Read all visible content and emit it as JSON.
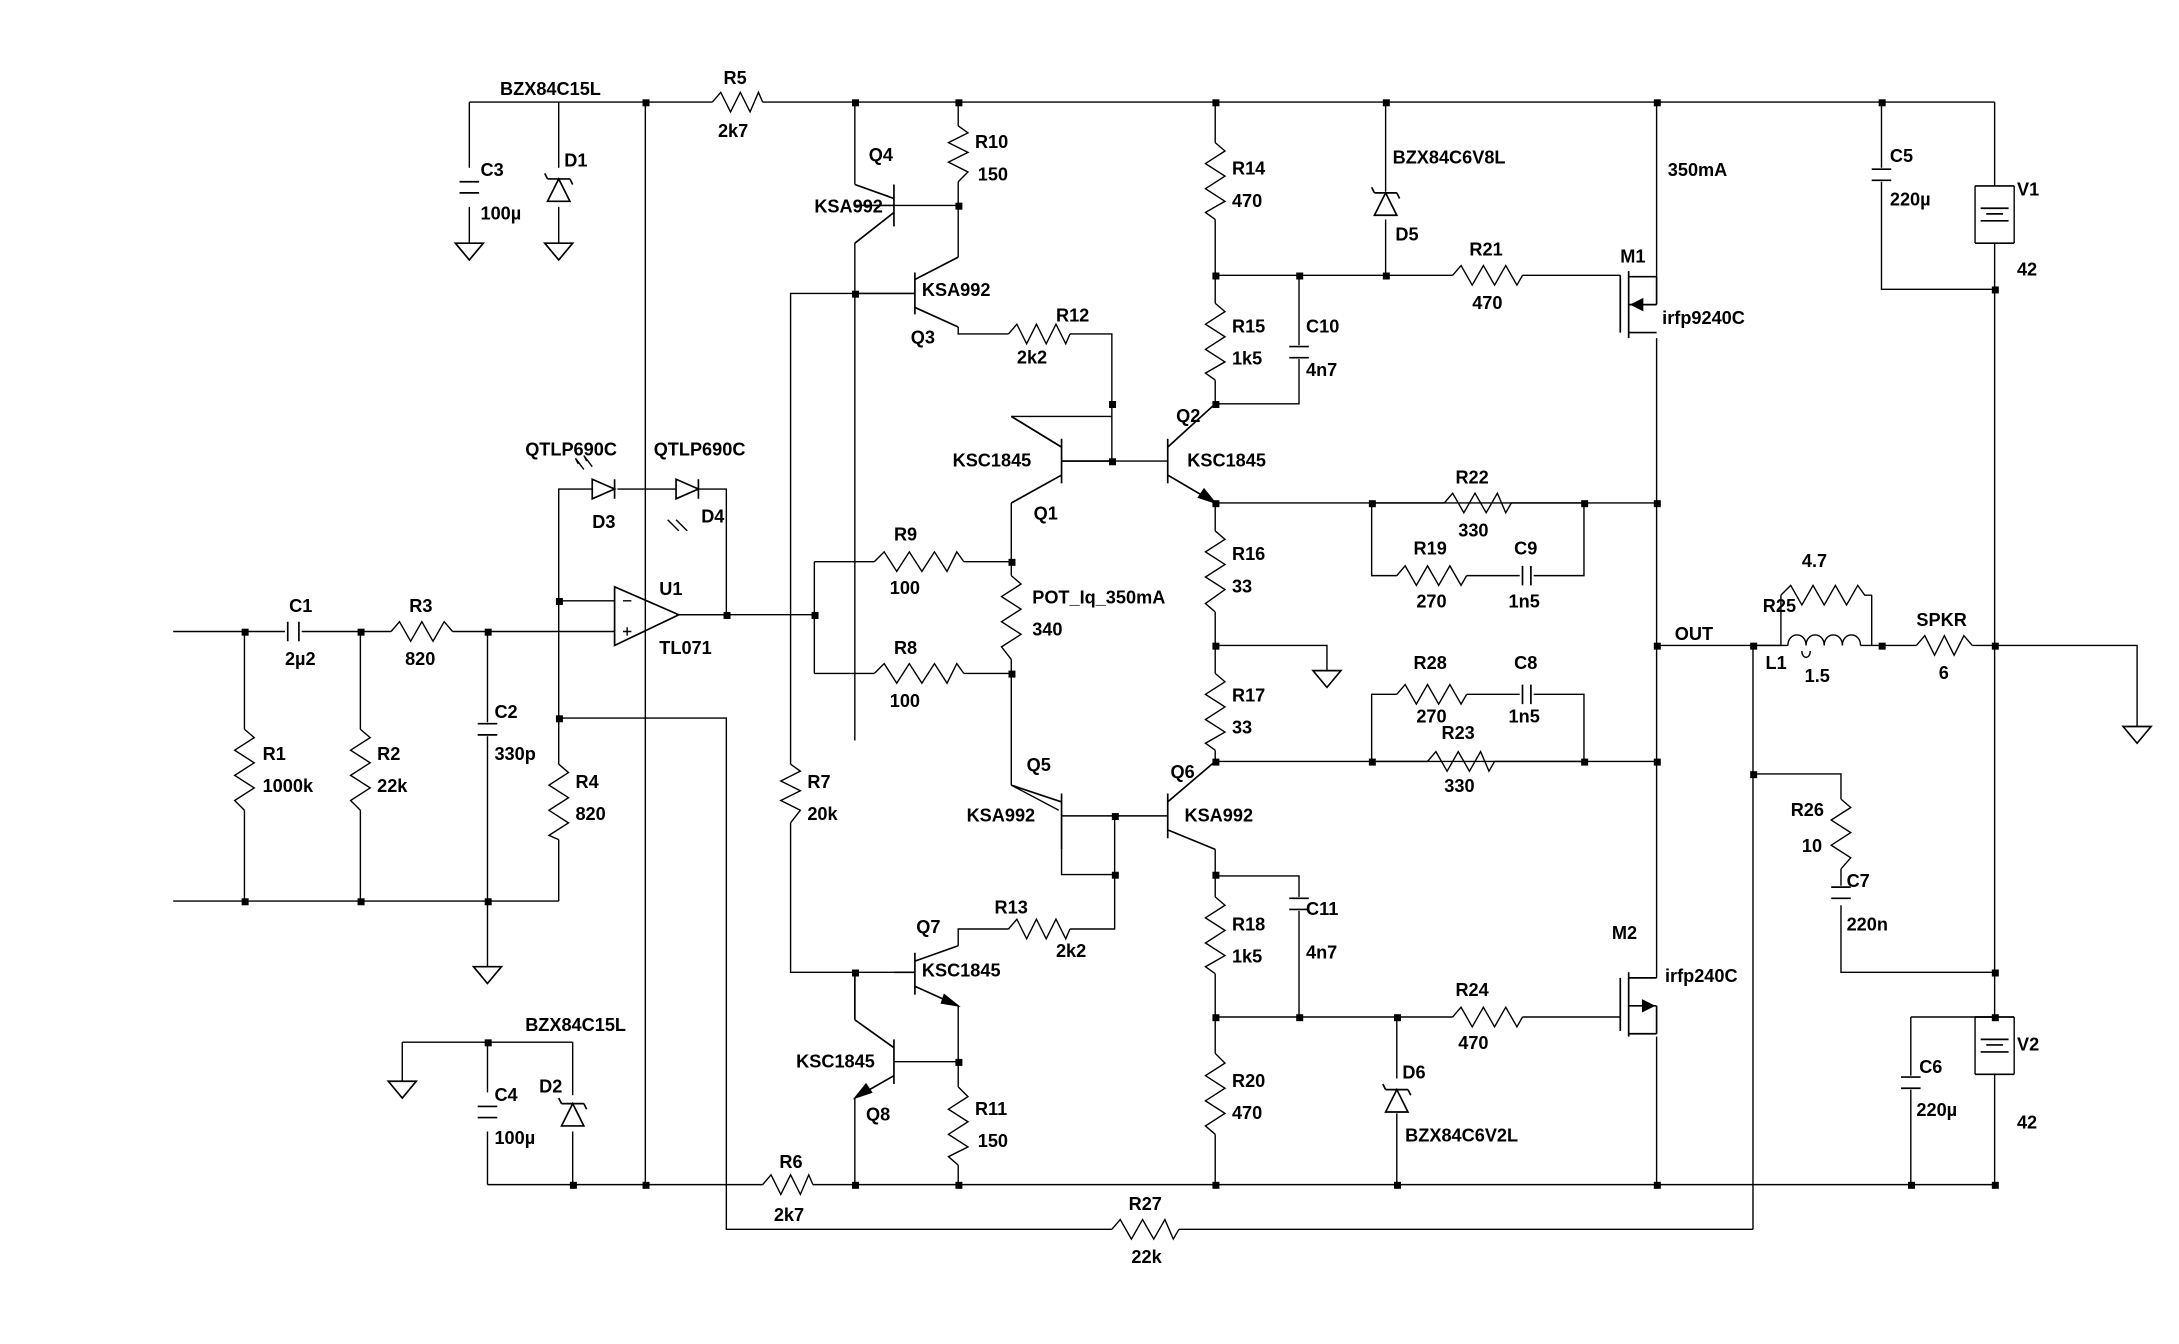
{
  "components": {
    "r1": {
      "ref": "R1",
      "value": "1000k"
    },
    "r2": {
      "ref": "R2",
      "value": "22k"
    },
    "r3": {
      "ref": "R3",
      "value": "820"
    },
    "r4": {
      "ref": "R4",
      "value": "820"
    },
    "r5": {
      "ref": "R5",
      "value": "2k7"
    },
    "r6": {
      "ref": "R6",
      "value": "2k7"
    },
    "r7": {
      "ref": "R7",
      "value": "20k"
    },
    "r8": {
      "ref": "R8",
      "value": "100"
    },
    "r9": {
      "ref": "R9",
      "value": "100"
    },
    "r10": {
      "ref": "R10",
      "value": "150"
    },
    "r11": {
      "ref": "R11",
      "value": "150"
    },
    "r12": {
      "ref": "R12",
      "value": "2k2"
    },
    "r13": {
      "ref": "R13",
      "value": "2k2"
    },
    "r14": {
      "ref": "R14",
      "value": "470"
    },
    "r15": {
      "ref": "R15",
      "value": "1k5"
    },
    "r16": {
      "ref": "R16",
      "value": "33"
    },
    "r17": {
      "ref": "R17",
      "value": "33"
    },
    "r18": {
      "ref": "R18",
      "value": "1k5"
    },
    "r19": {
      "ref": "R19",
      "value": "270"
    },
    "r20": {
      "ref": "R20",
      "value": "470"
    },
    "r21": {
      "ref": "R21",
      "value": "470"
    },
    "r22": {
      "ref": "R22",
      "value": "330"
    },
    "r23": {
      "ref": "R23",
      "value": "330"
    },
    "r24": {
      "ref": "R24",
      "value": "470"
    },
    "r25": {
      "ref": "R25",
      "value": "4.7"
    },
    "r26": {
      "ref": "R26",
      "value": "10"
    },
    "r27": {
      "ref": "R27",
      "value": "22k"
    },
    "r28": {
      "ref": "R28",
      "value": "270"
    },
    "pot": {
      "ref": "POT_Iq_350mA",
      "value": "340"
    },
    "c1": {
      "ref": "C1",
      "value": "2µ2"
    },
    "c2": {
      "ref": "C2",
      "value": "330p"
    },
    "c3": {
      "ref": "C3",
      "value": "100µ"
    },
    "c4": {
      "ref": "C4",
      "value": "100µ"
    },
    "c5": {
      "ref": "C5",
      "value": "220µ"
    },
    "c6": {
      "ref": "C6",
      "value": "220µ"
    },
    "c7": {
      "ref": "C7",
      "value": "220n"
    },
    "c8": {
      "ref": "C8",
      "value": "1n5"
    },
    "c9": {
      "ref": "C9",
      "value": "1n5"
    },
    "c10": {
      "ref": "C10",
      "value": "4n7"
    },
    "c11": {
      "ref": "C11",
      "value": "4n7"
    },
    "d1": {
      "ref": "D1",
      "value": "BZX84C15L"
    },
    "d2": {
      "ref": "D2",
      "value": "BZX84C15L"
    },
    "d3": {
      "ref": "D3",
      "value": "QTLP690C"
    },
    "d4": {
      "ref": "D4",
      "value": "QTLP690C"
    },
    "d5": {
      "ref": "D5",
      "value": "BZX84C6V8L"
    },
    "d6": {
      "ref": "D6",
      "value": "BZX84C6V2L"
    },
    "q1": {
      "ref": "Q1",
      "value": "KSC1845"
    },
    "q2": {
      "ref": "Q2",
      "value": "KSC1845"
    },
    "q3": {
      "ref": "Q3",
      "value": "KSA992"
    },
    "q4": {
      "ref": "Q4",
      "value": "KSA992"
    },
    "q5": {
      "ref": "Q5",
      "value": "KSA992"
    },
    "q6": {
      "ref": "Q6",
      "value": "KSA992"
    },
    "q7": {
      "ref": "Q7",
      "value": "KSC1845"
    },
    "q8": {
      "ref": "Q8",
      "value": "KSC1845"
    },
    "m1": {
      "ref": "M1",
      "value": "irfp9240C"
    },
    "m2": {
      "ref": "M2",
      "value": "irfp240C"
    },
    "u1": {
      "ref": "U1",
      "value": "TL071"
    },
    "v1": {
      "ref": "V1",
      "value": "42"
    },
    "v2": {
      "ref": "V2",
      "value": "42"
    },
    "l1": {
      "ref": "L1",
      "value": "1.5"
    },
    "spkr": {
      "ref": "SPKR",
      "value": "6"
    }
  },
  "annotations": {
    "bias_current": "350mA",
    "output_net": "OUT"
  }
}
